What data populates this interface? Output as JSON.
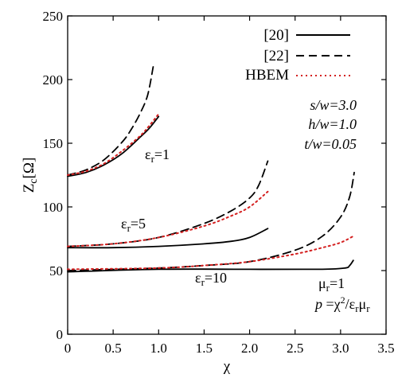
{
  "chart_data": {
    "type": "line",
    "xlabel": "χ",
    "ylabel": "Z",
    "ylabel_sub": "c",
    "ylabel_unit": "[Ω]",
    "xlim": [
      0,
      3.5
    ],
    "ylim": [
      0,
      250
    ],
    "xticks": [
      "0",
      "0.5",
      "1.0",
      "1.5",
      "2.0",
      "2.5",
      "3.0",
      "3.5"
    ],
    "yticks": [
      "0",
      "50",
      "100",
      "150",
      "200",
      "250"
    ],
    "legend": [
      {
        "label": "[20]",
        "style": "solid",
        "color": "#000000"
      },
      {
        "label": "[22]",
        "style": "dashed",
        "color": "#000000"
      },
      {
        "label": "HBEM",
        "style": "dotted",
        "color": "#d42020"
      }
    ],
    "params": {
      "line1": "s/w=3.0",
      "line2": "h/w=1.0",
      "line3": "t/w=0.05"
    },
    "annotations": {
      "eps1": {
        "base": "ε",
        "sub": "r",
        "tail": "=1"
      },
      "eps5": {
        "base": "ε",
        "sub": "r",
        "tail": "=5"
      },
      "eps10": {
        "base": "ε",
        "sub": "r",
        "tail": "=10"
      },
      "mu": {
        "base": "μ",
        "sub": "r",
        "tail": "=1"
      },
      "formula": {
        "p": "p",
        "eq": " =χ",
        "sup": "2",
        "slash": "/ε",
        "sub1": "r",
        "mu": "μ",
        "sub2": "r"
      }
    },
    "series": [
      {
        "group": "εr=1",
        "style": "solid",
        "x": [
          0,
          0.2,
          0.4,
          0.6,
          0.8,
          0.9,
          1.0
        ],
        "y": [
          124,
          127,
          133,
          142,
          155,
          162,
          171
        ]
      },
      {
        "group": "εr=1",
        "style": "dashed",
        "x": [
          0,
          0.2,
          0.4,
          0.6,
          0.7,
          0.8,
          0.88,
          0.94
        ],
        "y": [
          125,
          129,
          137,
          151,
          161,
          174,
          188,
          210
        ]
      },
      {
        "group": "εr=1",
        "style": "dotted",
        "x": [
          0,
          0.2,
          0.4,
          0.6,
          0.8,
          0.9,
          1.0
        ],
        "y": [
          125,
          128,
          134,
          144,
          156,
          164,
          173
        ]
      },
      {
        "group": "εr=5",
        "style": "solid",
        "x": [
          0,
          0.5,
          1.0,
          1.5,
          1.8,
          2.0,
          2.2
        ],
        "y": [
          68,
          68,
          69,
          71,
          73,
          76,
          83
        ]
      },
      {
        "group": "εr=5",
        "style": "dashed",
        "x": [
          0,
          0.5,
          1.0,
          1.5,
          1.8,
          2.0,
          2.1,
          2.2
        ],
        "y": [
          69,
          71,
          76,
          87,
          97,
          107,
          117,
          136
        ]
      },
      {
        "group": "εr=5",
        "style": "dotted",
        "x": [
          0,
          0.5,
          1.0,
          1.5,
          1.8,
          2.0,
          2.2
        ],
        "y": [
          69,
          71,
          76,
          85,
          93,
          100,
          112
        ]
      },
      {
        "group": "εr=10",
        "style": "solid",
        "x": [
          0,
          1.0,
          2.0,
          2.8,
          3.05,
          3.1,
          3.14
        ],
        "y": [
          49,
          51,
          51,
          51,
          52,
          54,
          58
        ]
      },
      {
        "group": "εr=10",
        "style": "dashed",
        "x": [
          0,
          1.0,
          1.5,
          2.0,
          2.5,
          2.8,
          3.0,
          3.1,
          3.15
        ],
        "y": [
          50,
          52,
          54,
          57,
          66,
          77,
          92,
          108,
          127
        ]
      },
      {
        "group": "εr=10",
        "style": "dotted",
        "x": [
          0,
          1.0,
          1.5,
          2.0,
          2.5,
          2.8,
          3.0,
          3.14
        ],
        "y": [
          51,
          52,
          54,
          57,
          63,
          68,
          72,
          77
        ]
      }
    ]
  }
}
